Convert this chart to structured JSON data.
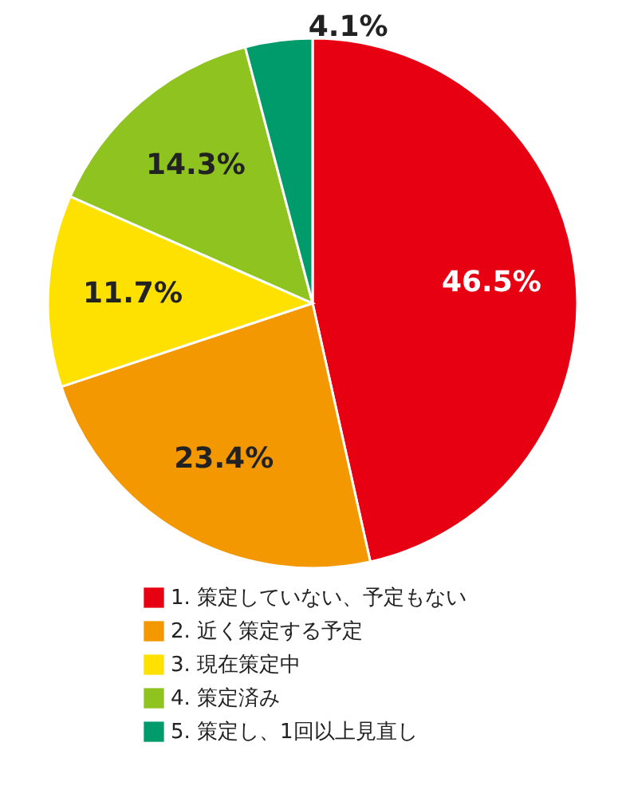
{
  "chart_data": {
    "type": "pie",
    "categories": [
      "1. 策定していない、予定もない",
      "2. 近く策定する予定",
      "3. 現在策定中",
      "4. 策定済み",
      "5. 策定し、1回以上見直し"
    ],
    "values": [
      46.5,
      23.4,
      11.7,
      14.3,
      4.1
    ],
    "colors": [
      "#e60012",
      "#f39800",
      "#ffe100",
      "#8fc31f",
      "#009b6b"
    ],
    "value_labels": [
      "46.5%",
      "23.4%",
      "11.7%",
      "14.3%",
      "4.1%"
    ],
    "legend": "bottom"
  }
}
